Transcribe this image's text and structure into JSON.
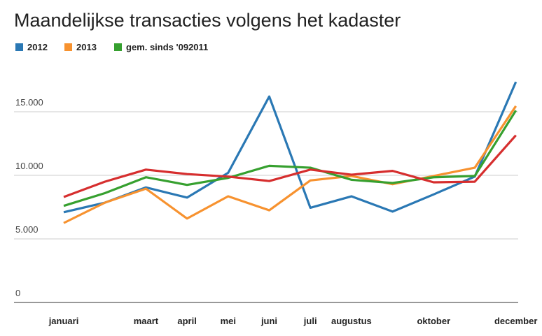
{
  "chart_data": {
    "type": "line",
    "title": "Maandelijkse transacties volgens het kadaster",
    "categories": [
      "januari",
      null,
      "maart",
      "april",
      "mei",
      "juni",
      "juli",
      "augustus",
      null,
      "oktober",
      null,
      "december"
    ],
    "series": [
      {
        "name": "2012",
        "color": "#2a78b4",
        "values": [
          7100,
          7850,
          9050,
          8250,
          10200,
          16200,
          7450,
          8350,
          7150,
          8500,
          9900,
          17350
        ]
      },
      {
        "name": "2013",
        "color": "#f7922f",
        "values": [
          6250,
          7850,
          8950,
          6600,
          8350,
          7250,
          9600,
          9950,
          9300,
          9950,
          10600,
          15450
        ]
      },
      {
        "name": "gem. sinds '092011",
        "color": "#36a02f",
        "values": [
          7600,
          8600,
          9850,
          9250,
          9800,
          10750,
          10600,
          9650,
          9400,
          9850,
          9950,
          15100
        ]
      },
      {
        "color": "#d62e2e",
        "values": [
          8300,
          9500,
          10450,
          10100,
          9900,
          9550,
          10450,
          10050,
          10350,
          9450,
          9500,
          13150
        ]
      }
    ],
    "ylim": [
      0,
      20000
    ],
    "yticks": [
      {
        "value": 0,
        "label": "0"
      },
      {
        "value": 5000,
        "label": "5.000"
      },
      {
        "value": 10000,
        "label": "10.000"
      },
      {
        "value": 15000,
        "label": "15.000"
      }
    ],
    "grid": true
  }
}
